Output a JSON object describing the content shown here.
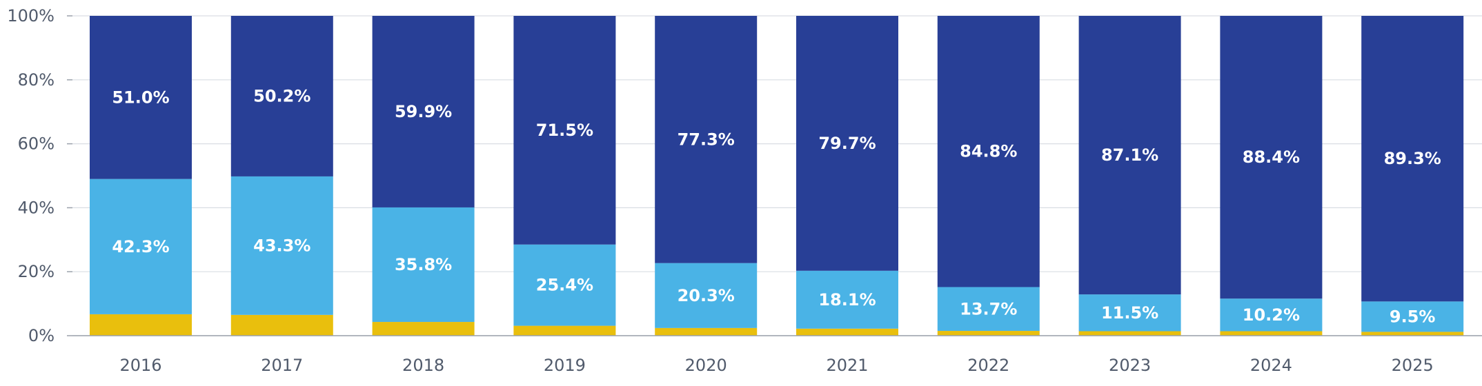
{
  "chart_data": {
    "type": "bar",
    "stacked": true,
    "title": "",
    "xlabel": "",
    "ylabel": "",
    "categories": [
      "2016",
      "2017",
      "2018",
      "2019",
      "2020",
      "2021",
      "2022",
      "2023",
      "2024",
      "2025"
    ],
    "ylim": [
      0,
      100
    ],
    "y_ticks": [
      "0%",
      "20%",
      "40%",
      "60%",
      "80%",
      "100%"
    ],
    "y_tick_values": [
      0,
      20,
      40,
      60,
      80,
      100
    ],
    "grid": true,
    "legend": "none",
    "series": [
      {
        "color": "#e9bf0d",
        "values": [
          6.7,
          6.5,
          4.3,
          3.1,
          2.4,
          2.2,
          1.5,
          1.4,
          1.4,
          1.2
        ]
      },
      {
        "color": "#4ab3e6",
        "values": [
          42.3,
          43.3,
          35.8,
          25.4,
          20.3,
          18.1,
          13.7,
          11.5,
          10.2,
          9.5
        ],
        "labels": [
          "42.3%",
          "43.3%",
          "35.8%",
          "25.4%",
          "20.3%",
          "18.1%",
          "13.7%",
          "11.5%",
          "10.2%",
          "9.5%"
        ]
      },
      {
        "color": "#283f96",
        "values": [
          51.0,
          50.2,
          59.9,
          71.5,
          77.3,
          79.7,
          84.8,
          87.1,
          88.4,
          89.3
        ],
        "labels": [
          "51.0%",
          "50.2%",
          "59.9%",
          "71.5%",
          "77.3%",
          "79.7%",
          "84.8%",
          "87.1%",
          "88.4%",
          "89.3%"
        ]
      }
    ]
  }
}
